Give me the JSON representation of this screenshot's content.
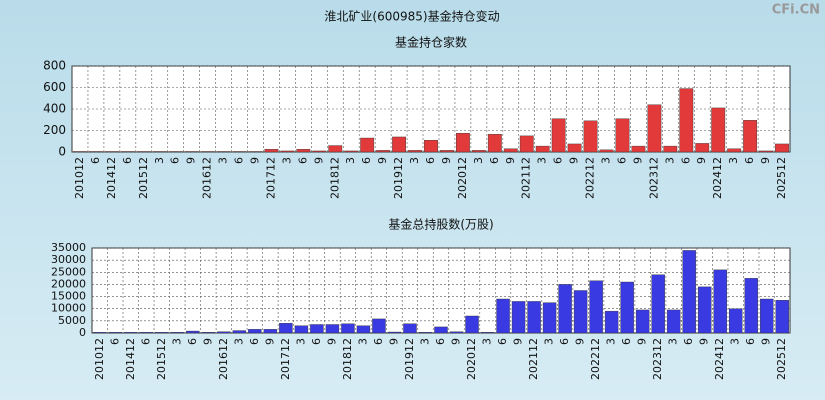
{
  "title": "淮北矿业(600985)基金持仓变动",
  "watermark": "CFi.CN",
  "chart_data": [
    {
      "type": "bar",
      "title": "基金持仓家数",
      "color": "#e23a3a",
      "categories": [
        "201012",
        "6",
        "201412",
        "6",
        "201512",
        "3",
        "6",
        "9",
        "201612",
        "3",
        "6",
        "9",
        "201712",
        "3",
        "6",
        "9",
        "201812",
        "3",
        "6",
        "9",
        "201912",
        "3",
        "6",
        "9",
        "202012",
        "3",
        "6",
        "9",
        "202112",
        "3",
        "6",
        "9",
        "202212",
        "3",
        "6",
        "9",
        "202312",
        "3",
        "6",
        "9",
        "202412",
        "3",
        "6",
        "9",
        "202512"
      ],
      "values": [
        5,
        5,
        5,
        5,
        5,
        5,
        5,
        5,
        5,
        5,
        5,
        5,
        25,
        10,
        25,
        10,
        60,
        10,
        130,
        15,
        140,
        15,
        110,
        15,
        175,
        15,
        165,
        30,
        150,
        55,
        310,
        75,
        290,
        20,
        310,
        55,
        440,
        55,
        590,
        80,
        410,
        30,
        295,
        10,
        75
      ],
      "ylim": [
        0,
        800
      ],
      "yticks": [
        0,
        200,
        400,
        600,
        800
      ],
      "grid": true
    },
    {
      "type": "bar",
      "title": "基金总持股数(万股)",
      "color": "#3a3ae2",
      "categories": [
        "201012",
        "6",
        "201412",
        "6",
        "201512",
        "3",
        "6",
        "9",
        "201612",
        "3",
        "6",
        "9",
        "201712",
        "3",
        "6",
        "9",
        "201812",
        "3",
        "6",
        "9",
        "201912",
        "3",
        "6",
        "9",
        "202012",
        "3",
        "6",
        "9",
        "202112",
        "3",
        "6",
        "9",
        "202212",
        "3",
        "6",
        "9",
        "202312",
        "3",
        "6",
        "9",
        "202412",
        "3",
        "6",
        "9",
        "202512"
      ],
      "values": [
        300,
        300,
        300,
        300,
        300,
        300,
        800,
        300,
        500,
        1000,
        1500,
        1500,
        4000,
        3000,
        3500,
        3500,
        3800,
        3000,
        5800,
        400,
        3800,
        300,
        2500,
        500,
        7000,
        300,
        14000,
        13000,
        13000,
        12500,
        20000,
        17500,
        21500,
        9000,
        21000,
        9500,
        24000,
        9500,
        34000,
        19000,
        26000,
        10000,
        22500,
        14000,
        13500
      ],
      "ylim": [
        0,
        35000
      ],
      "yticks": [
        0,
        5000,
        10000,
        15000,
        20000,
        25000,
        30000,
        35000
      ],
      "grid": true
    }
  ]
}
